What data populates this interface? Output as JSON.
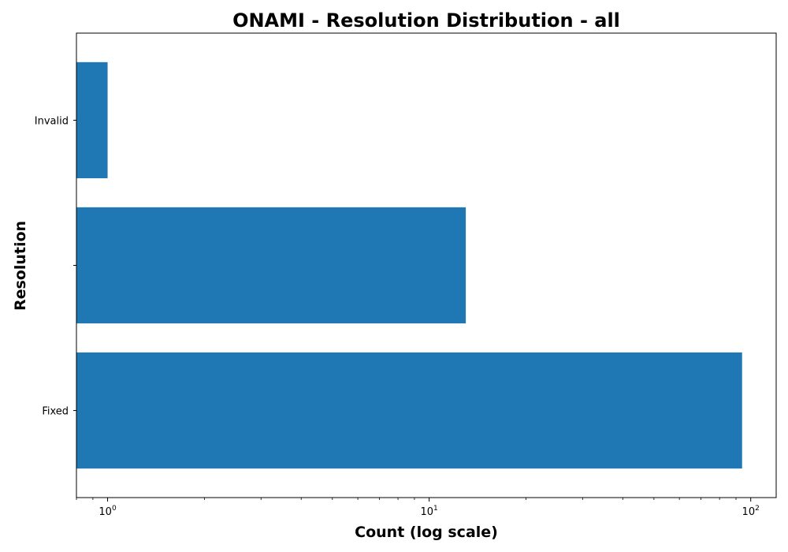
{
  "chart_data": {
    "type": "bar",
    "orientation": "horizontal",
    "title": "ONAMI - Resolution Distribution - all",
    "xlabel": "Count (log scale)",
    "ylabel": "Resolution",
    "x_scale": "log",
    "xlim": [
      0.8,
      120
    ],
    "x_ticks": [
      {
        "value": 1,
        "base": "10",
        "exp": "0"
      },
      {
        "value": 10,
        "base": "10",
        "exp": "1"
      },
      {
        "value": 100,
        "base": "10",
        "exp": "2"
      }
    ],
    "categories": [
      "Fixed",
      "",
      "Invalid"
    ],
    "values": [
      94,
      13,
      1
    ],
    "bar_color": "#1f77b4",
    "grid": false,
    "legend": "none"
  }
}
